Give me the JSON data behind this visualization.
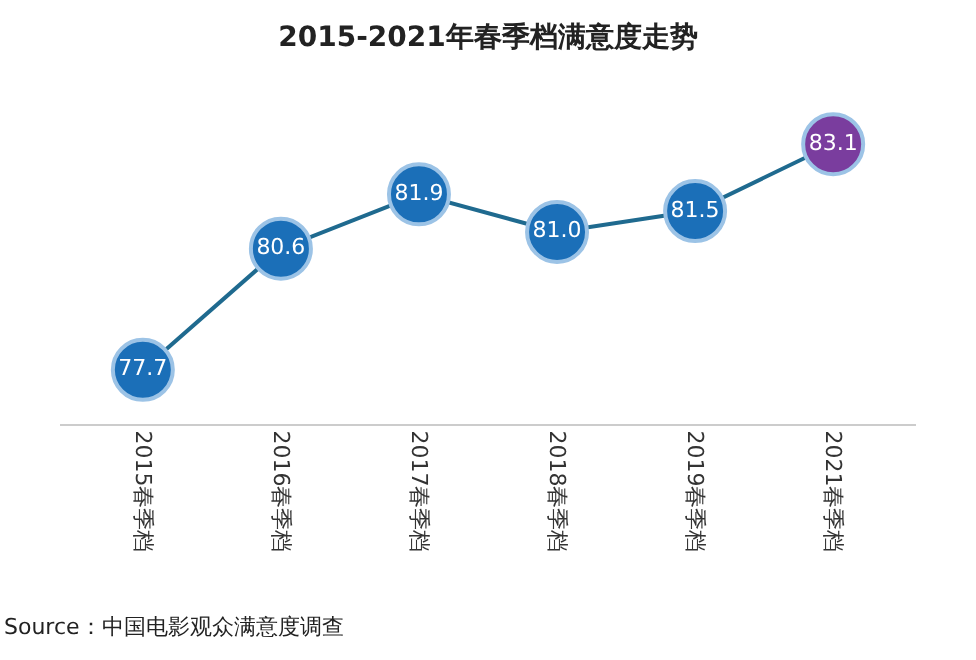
{
  "chart_data": {
    "type": "line",
    "title": "2015-2021年春季档满意度走势",
    "categories": [
      "2015春季档",
      "2016春季档",
      "2017春季档",
      "2018春季档",
      "2019春季档",
      "2021春季档"
    ],
    "series": [
      {
        "color": "#1f6a8f",
        "colors": [
          "#1b6fb8",
          "#1b6fb8",
          "#1b6fb8",
          "#1b6fb8",
          "#1b6fb8",
          "#7a3d9e"
        ],
        "values": [
          77.7,
          80.6,
          81.9,
          81.0,
          81.5,
          83.1
        ],
        "value_labels": [
          "77.7",
          "80.6",
          "81.9",
          "81.0",
          "81.5",
          "83.1"
        ]
      }
    ],
    "marker": "circle",
    "line_style": "solid",
    "annotations": [
      "Source：中国电影观众满意度调查"
    ]
  }
}
